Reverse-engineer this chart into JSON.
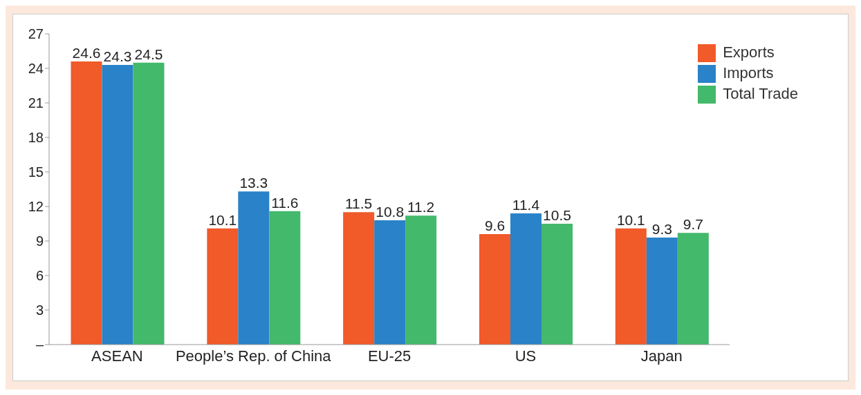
{
  "chart_data": {
    "type": "bar",
    "categories": [
      "ASEAN",
      "People’s Rep. of China",
      "EU-25",
      "US",
      "Japan"
    ],
    "series": [
      {
        "name": "Exports",
        "color": "#f15a29",
        "values": [
          24.6,
          10.1,
          11.5,
          9.6,
          10.1
        ]
      },
      {
        "name": "Imports",
        "color": "#2a82c8",
        "values": [
          24.3,
          13.3,
          10.8,
          11.4,
          9.3
        ]
      },
      {
        "name": "Total Trade",
        "color": "#43b96b",
        "values": [
          24.5,
          11.6,
          11.2,
          10.5,
          9.7
        ]
      }
    ],
    "ylim": [
      0,
      27
    ],
    "yticks": [
      {
        "value": 0,
        "label": "–"
      },
      3,
      6,
      9,
      12,
      15,
      18,
      21,
      24,
      27
    ],
    "data_labels": true,
    "legend": "top right"
  }
}
